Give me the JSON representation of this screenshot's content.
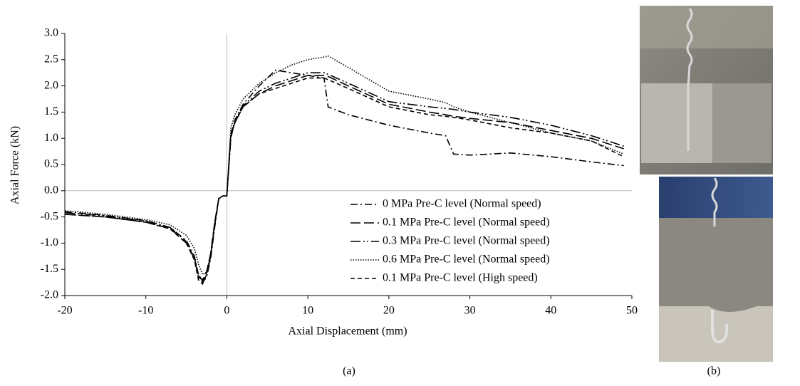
{
  "chart_data": {
    "type": "line",
    "x_label": "Axial Displacement (mm)",
    "y_label": "Axial Force (kN)",
    "caption": "(a)",
    "x": [
      -20,
      -15,
      -10,
      -7,
      -5,
      -4,
      -3.5,
      -3,
      -2.5,
      -2,
      -1.5,
      -1,
      -0.5,
      0,
      0.5,
      1,
      2,
      4,
      6,
      8,
      10,
      12,
      12.5,
      15,
      20,
      25,
      27,
      28,
      30,
      35,
      40,
      45,
      49
    ],
    "series": [
      {
        "name": "0 MPa Pre-C level (Normal speed)",
        "color": "#000000",
        "style": "dash-dot",
        "values": [
          -0.4,
          -0.47,
          -0.57,
          -0.7,
          -0.95,
          -1.25,
          -1.6,
          -1.75,
          -1.65,
          -1.3,
          -0.7,
          -0.15,
          -0.1,
          -0.1,
          1.0,
          1.35,
          1.65,
          2.0,
          2.3,
          2.25,
          2.2,
          2.15,
          1.6,
          1.45,
          1.25,
          1.1,
          1.05,
          0.7,
          0.68,
          0.72,
          0.65,
          0.55,
          0.48
        ]
      },
      {
        "name": "0.1 MPa Pre-C level (Normal speed)",
        "color": "#000000",
        "style": "long-dash",
        "values": [
          -0.45,
          -0.5,
          -0.6,
          -0.72,
          -1.0,
          -1.3,
          -1.65,
          -1.7,
          -1.55,
          -1.2,
          -0.6,
          -0.15,
          -0.1,
          -0.1,
          1.1,
          1.3,
          1.6,
          1.85,
          2.0,
          2.1,
          2.2,
          2.2,
          2.18,
          2.0,
          1.65,
          1.5,
          1.45,
          1.42,
          1.38,
          1.3,
          1.15,
          1.0,
          0.8
        ]
      },
      {
        "name": "0.3 MPa Pre-C level (Normal speed)",
        "color": "#000000",
        "style": "long-dash-dot-dot",
        "values": [
          -0.42,
          -0.48,
          -0.58,
          -0.7,
          -0.97,
          -1.28,
          -1.6,
          -1.72,
          -1.6,
          -1.25,
          -0.65,
          -0.15,
          -0.1,
          -0.1,
          1.05,
          1.32,
          1.62,
          1.9,
          2.05,
          2.15,
          2.25,
          2.25,
          2.22,
          2.05,
          1.7,
          1.6,
          1.57,
          1.55,
          1.5,
          1.4,
          1.25,
          1.05,
          0.85
        ]
      },
      {
        "name": "0.6 MPa Pre-C level (Normal speed)",
        "color": "#000000",
        "style": "dotted",
        "values": [
          -0.38,
          -0.45,
          -0.55,
          -0.65,
          -0.85,
          -1.1,
          -1.4,
          -1.6,
          -1.55,
          -1.2,
          -0.6,
          -0.15,
          -0.1,
          -0.1,
          1.2,
          1.45,
          1.75,
          2.05,
          2.25,
          2.4,
          2.5,
          2.55,
          2.57,
          2.35,
          1.9,
          1.75,
          1.68,
          1.6,
          1.5,
          1.3,
          1.1,
          0.95,
          0.7
        ]
      },
      {
        "name": "0.1 MPa Pre-C level (High speed)",
        "color": "#000000",
        "style": "dashed",
        "values": [
          -0.45,
          -0.5,
          -0.6,
          -0.73,
          -1.0,
          -1.32,
          -1.7,
          -1.78,
          -1.6,
          -1.25,
          -0.65,
          -0.15,
          -0.1,
          -0.1,
          1.05,
          1.3,
          1.6,
          1.85,
          1.95,
          2.05,
          2.15,
          2.15,
          2.12,
          1.95,
          1.6,
          1.45,
          1.42,
          1.4,
          1.35,
          1.2,
          1.1,
          0.95,
          0.65
        ]
      }
    ],
    "xlim": [
      -20,
      50
    ],
    "xticks": [
      -20,
      -10,
      0,
      10,
      20,
      30,
      40,
      50
    ],
    "ylim": [
      -2,
      3
    ],
    "yticks": [
      {
        "value": -2,
        "label": "-2.0"
      },
      -1.5,
      {
        "value": -1,
        "label": "-1.0"
      },
      -0.5,
      {
        "value": 0,
        "label": "0.0"
      },
      0.5,
      {
        "value": 1,
        "label": "1.0"
      },
      1.5,
      {
        "value": 2,
        "label": "2.0"
      },
      2.5,
      {
        "value": 3,
        "label": "3.0"
      }
    ],
    "zero_lines": true,
    "legend": "lower right"
  },
  "photo_panel": {
    "caption": "(b)"
  }
}
